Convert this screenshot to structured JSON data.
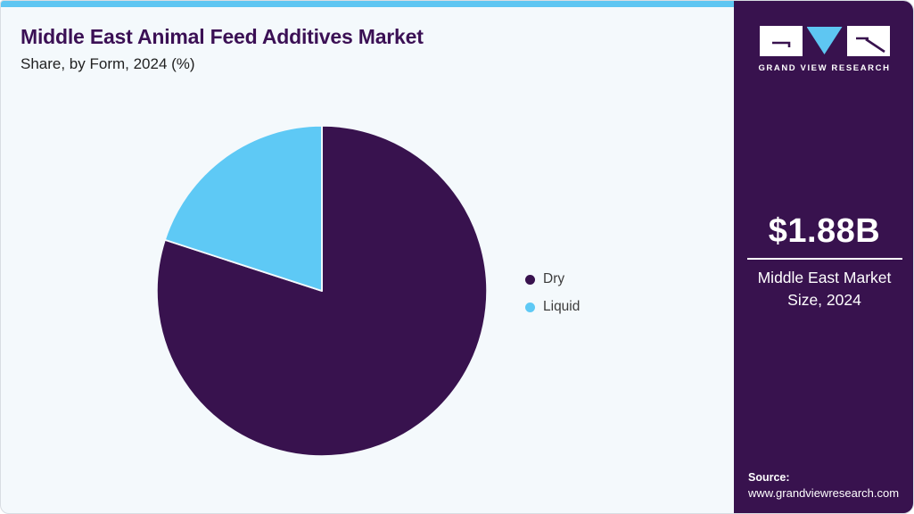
{
  "header": {
    "title": "Middle East Animal Feed Additives Market",
    "subtitle": "Share, by Form, 2024 (%)"
  },
  "chart_data": {
    "type": "pie",
    "title": "Middle East Animal Feed Additives Market Share, by Form, 2024 (%)",
    "categories": [
      "Dry",
      "Liquid"
    ],
    "values": [
      80,
      20
    ],
    "unit": "%",
    "colors": [
      "#38124e",
      "#5ec9f5"
    ],
    "start_angle_deg": -90,
    "direction": "clockwise",
    "slice_separator_color": "#f4f9fc",
    "legend_position": "right",
    "data_labels_shown": false
  },
  "legend": {
    "items": [
      {
        "label": "Dry",
        "color": "#38124e"
      },
      {
        "label": "Liquid",
        "color": "#5ec9f5"
      }
    ]
  },
  "sidebar": {
    "brand": {
      "name": "GRAND VIEW RESEARCH"
    },
    "market_size": {
      "value": "$1.88B",
      "caption": "Middle East Market Size, 2024"
    },
    "source": {
      "label": "Source:",
      "url": "www.grandviewresearch.com"
    }
  },
  "colors": {
    "accent": "#5ec6f2",
    "sidebar": "#38124e",
    "bg": "#f4f9fc",
    "title": "#3b1055"
  }
}
